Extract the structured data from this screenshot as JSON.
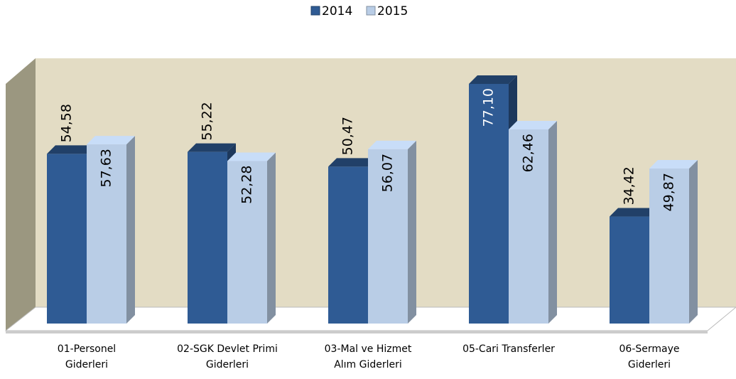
{
  "chart_data": {
    "type": "bar3d",
    "categories": [
      "01-Personel\nGiderleri",
      "02-SGK Devlet Primi\nGiderleri",
      "03-Mal ve Hizmet\nAlım Giderleri",
      "05-Cari Transferler",
      "06-Sermaye\nGiderleri"
    ],
    "series": [
      {
        "name": "2014",
        "color": "#2f5b94",
        "values": [
          54.58,
          55.22,
          50.47,
          77.1,
          34.42
        ],
        "value_labels": [
          "54,58",
          "55,22",
          "50,47",
          "77,10",
          "34,42"
        ]
      },
      {
        "name": "2015",
        "color": "#b9cde6",
        "values": [
          57.63,
          52.28,
          56.07,
          62.46,
          49.87
        ],
        "value_labels": [
          "57,63",
          "52,28",
          "56,07",
          "62,46",
          "49,87"
        ]
      }
    ],
    "legend": "top"
  }
}
